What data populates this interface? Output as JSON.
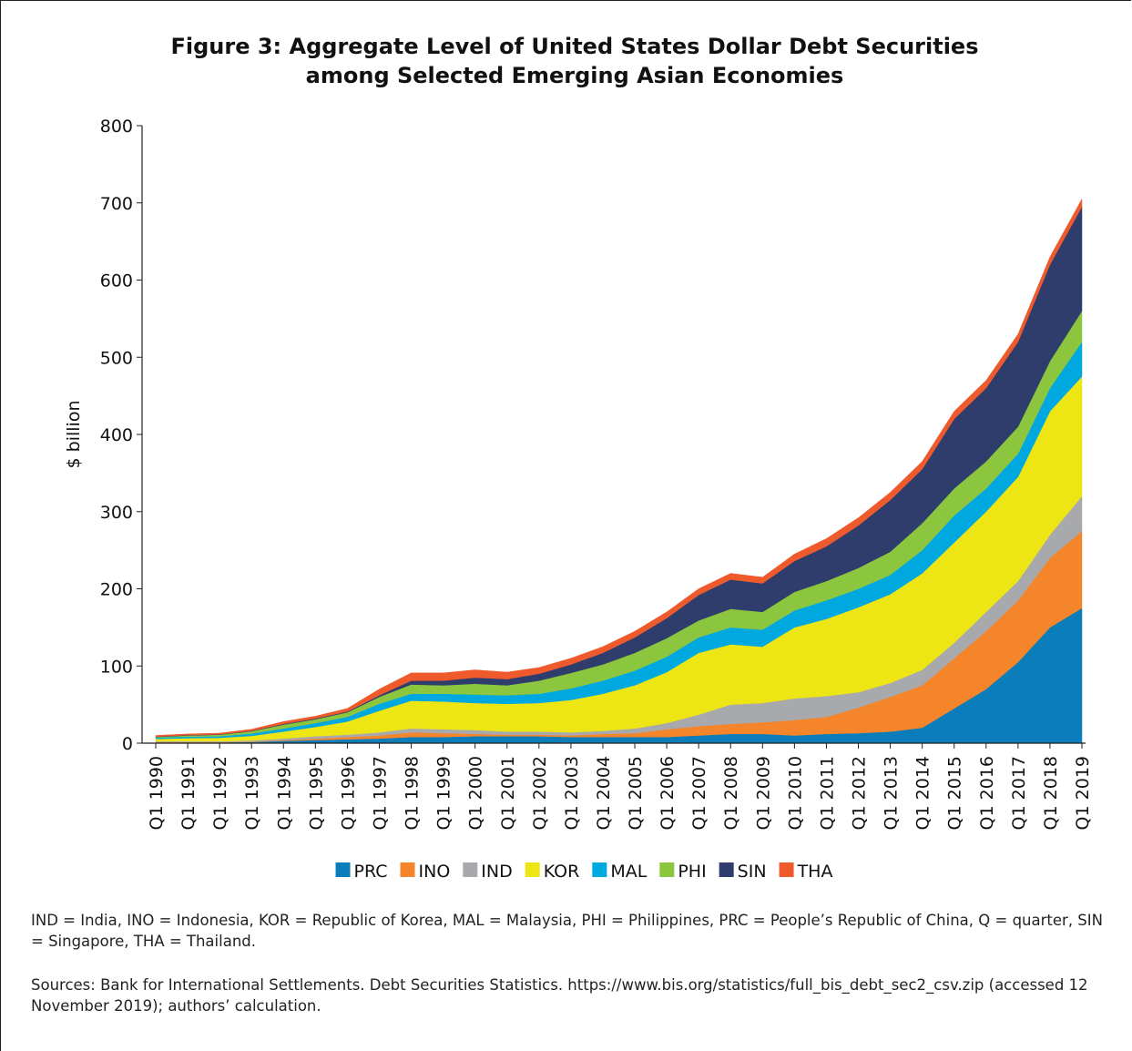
{
  "chart_data": {
    "type": "stacked_area",
    "title": "Figure 3: Aggregate Level of United States Dollar Debt Securities among Selected Emerging Asian Economies",
    "y_label": "$ billion",
    "categories": [
      "Q1 1990",
      "Q1 1991",
      "Q1 1992",
      "Q1 1993",
      "Q1 1994",
      "Q1 1995",
      "Q1 1996",
      "Q1 1997",
      "Q1 1998",
      "Q1 1999",
      "Q1 2000",
      "Q1 2001",
      "Q1 2002",
      "Q1 2003",
      "Q1 2004",
      "Q1 2005",
      "Q1 2006",
      "Q1 2007",
      "Q1 2008",
      "Q1 2009",
      "Q1 2010",
      "Q1 2011",
      "Q1 2012",
      "Q1 2013",
      "Q1 2014",
      "Q1 2015",
      "Q1 2016",
      "Q1 2017",
      "Q1 2018",
      "Q1 2019"
    ],
    "series": [
      {
        "name": "PRC",
        "color": "#0b7dba",
        "values": [
          1,
          1,
          1,
          1.5,
          3,
          4,
          5,
          6,
          8,
          8,
          9,
          9,
          9,
          8,
          8,
          8,
          8,
          10,
          12,
          12,
          10,
          12,
          13,
          15,
          20,
          45,
          70,
          105,
          150,
          175
        ]
      },
      {
        "name": "INO",
        "color": "#f5852a",
        "values": [
          0.5,
          0.5,
          0.5,
          0.5,
          1,
          2,
          3,
          4,
          6,
          5,
          3,
          2,
          2,
          2,
          4,
          5,
          10,
          12,
          13,
          15,
          20,
          22,
          33,
          45,
          55,
          65,
          75,
          80,
          90,
          100
        ]
      },
      {
        "name": "IND",
        "color": "#a7a9ac",
        "values": [
          1,
          1,
          1,
          1.5,
          2,
          3,
          3,
          4,
          5,
          5,
          5,
          4,
          4,
          4,
          4,
          6,
          8,
          15,
          25,
          25,
          28,
          27,
          20,
          18,
          20,
          20,
          25,
          25,
          30,
          45
        ]
      },
      {
        "name": "KOR",
        "color": "#eee514",
        "values": [
          3,
          4,
          4.5,
          6,
          9,
          12,
          17,
          28,
          36,
          36,
          35,
          36,
          37,
          42,
          48,
          56,
          66,
          80,
          78,
          73,
          92,
          100,
          110,
          115,
          125,
          130,
          130,
          135,
          160,
          155
        ]
      },
      {
        "name": "MAL",
        "color": "#00a8e0",
        "values": [
          1.5,
          2,
          2,
          3,
          4,
          5,
          6,
          9,
          9,
          10,
          11,
          11,
          12,
          15,
          17,
          19,
          20,
          20,
          22,
          22,
          22,
          24,
          24,
          25,
          30,
          35,
          30,
          30,
          30,
          45
        ]
      },
      {
        "name": "PHI",
        "color": "#8cc63f",
        "values": [
          1,
          1.5,
          2,
          3,
          5,
          5,
          6,
          9,
          12,
          11,
          14,
          13,
          17,
          20,
          21,
          23,
          24,
          22,
          24,
          23,
          24,
          25,
          27,
          30,
          35,
          35,
          35,
          35,
          35,
          40
        ]
      },
      {
        "name": "SIN",
        "color": "#2e3d6b",
        "values": [
          0.5,
          0.5,
          0.5,
          0.5,
          1,
          1,
          1,
          2,
          5,
          6,
          8,
          8,
          9,
          11,
          15,
          20,
          26,
          33,
          38,
          37,
          40,
          45,
          55,
          67,
          70,
          90,
          95,
          110,
          125,
          135
        ]
      },
      {
        "name": "THA",
        "color": "#ef5a2d",
        "values": [
          1.5,
          1.5,
          1.5,
          2,
          3,
          3,
          4,
          8,
          10,
          10,
          10,
          9,
          8,
          8,
          8,
          8,
          8,
          8,
          8,
          8,
          9,
          10,
          10,
          10,
          10,
          10,
          10,
          10,
          10,
          10
        ]
      }
    ],
    "ylim": [
      0,
      800
    ],
    "yticks": [
      0,
      100,
      200,
      300,
      400,
      500,
      600,
      700,
      800
    ],
    "notes": [
      "IND = India, INO = Indonesia, KOR = Republic of Korea, MAL = Malaysia, PHI = Philippines, PRC = People’s Republic of China, Q = quarter, SIN = Singapore, THA = Thailand.",
      "Sources: Bank for International Settlements. Debt Securities Statistics. https://www.bis.org/statistics/full_bis_debt_sec2_csv.zip (accessed 12 November 2019); authors’ calculation."
    ]
  }
}
